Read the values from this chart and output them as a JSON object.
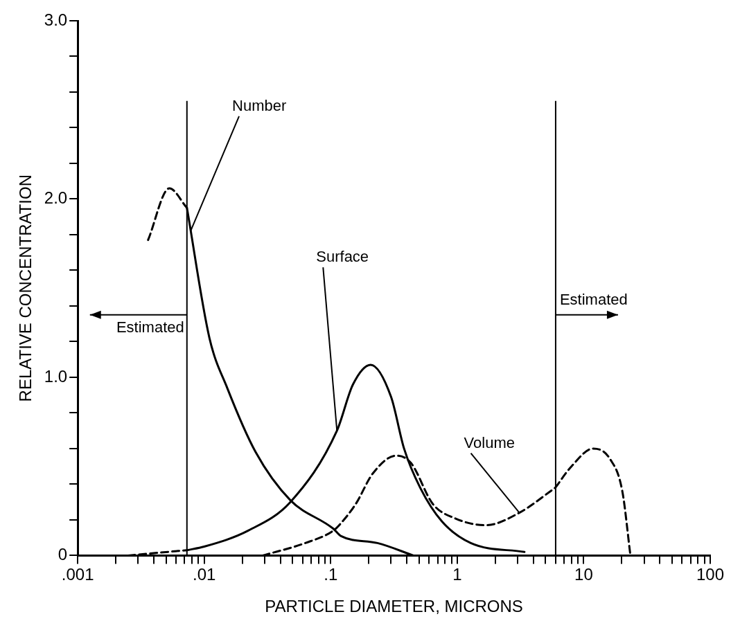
{
  "chart_data": {
    "type": "line",
    "xlabel": "PARTICLE DIAMETER, MICRONS",
    "ylabel": "RELATIVE CONCENTRATION",
    "log": "x",
    "grid": false,
    "legend": false,
    "marker": "none",
    "xlim": [
      0.001,
      100
    ],
    "xticks": [
      {
        "value": 0.001,
        "label": ".001"
      },
      {
        "value": 0.002,
        "label": null
      },
      {
        "value": 0.003,
        "label": null
      },
      {
        "value": 0.004,
        "label": null
      },
      {
        "value": 0.005,
        "label": null
      },
      {
        "value": 0.006,
        "label": null
      },
      {
        "value": 0.007,
        "label": null
      },
      {
        "value": 0.008,
        "label": null
      },
      {
        "value": 0.009,
        "label": null
      },
      {
        "value": 0.01,
        "label": ".01"
      },
      {
        "value": 0.02,
        "label": null
      },
      {
        "value": 0.03,
        "label": null
      },
      {
        "value": 0.04,
        "label": null
      },
      {
        "value": 0.05,
        "label": null
      },
      {
        "value": 0.06,
        "label": null
      },
      {
        "value": 0.07,
        "label": null
      },
      {
        "value": 0.08,
        "label": null
      },
      {
        "value": 0.09,
        "label": null
      },
      {
        "value": 0.1,
        "label": ".1"
      },
      {
        "value": 0.2,
        "label": null
      },
      {
        "value": 0.3,
        "label": null
      },
      {
        "value": 0.4,
        "label": null
      },
      {
        "value": 0.5,
        "label": null
      },
      {
        "value": 0.6,
        "label": null
      },
      {
        "value": 0.7,
        "label": null
      },
      {
        "value": 0.8,
        "label": null
      },
      {
        "value": 0.9,
        "label": null
      },
      {
        "value": 1,
        "label": "1"
      },
      {
        "value": 2,
        "label": null
      },
      {
        "value": 3,
        "label": null
      },
      {
        "value": 4,
        "label": null
      },
      {
        "value": 5,
        "label": null
      },
      {
        "value": 6,
        "label": null
      },
      {
        "value": 7,
        "label": null
      },
      {
        "value": 8,
        "label": null
      },
      {
        "value": 9,
        "label": null
      },
      {
        "value": 10,
        "label": "10"
      },
      {
        "value": 20,
        "label": null
      },
      {
        "value": 30,
        "label": null
      },
      {
        "value": 40,
        "label": null
      },
      {
        "value": 50,
        "label": null
      },
      {
        "value": 60,
        "label": null
      },
      {
        "value": 70,
        "label": null
      },
      {
        "value": 80,
        "label": null
      },
      {
        "value": 90,
        "label": null
      },
      {
        "value": 100,
        "label": "100"
      }
    ],
    "ylim": [
      0,
      3
    ],
    "yticks": [
      {
        "value": 0,
        "label": "0"
      },
      {
        "value": 0.2,
        "label": null
      },
      {
        "value": 0.4,
        "label": null
      },
      {
        "value": 0.6,
        "label": null
      },
      {
        "value": 0.8,
        "label": null
      },
      {
        "value": 1,
        "label": "1.0"
      },
      {
        "value": 1.2,
        "label": null
      },
      {
        "value": 1.4,
        "label": null
      },
      {
        "value": 1.6,
        "label": null
      },
      {
        "value": 1.8,
        "label": null
      },
      {
        "value": 2,
        "label": "2.0"
      },
      {
        "value": 2.2,
        "label": null
      },
      {
        "value": 2.4,
        "label": null
      },
      {
        "value": 2.6,
        "label": null
      },
      {
        "value": 2.8,
        "label": null
      },
      {
        "value": 3,
        "label": "3.0"
      }
    ],
    "series": [
      {
        "color": "#000000",
        "line_style": "solid",
        "x": [
          0.0073,
          0.011,
          0.0152,
          0.0255,
          0.048,
          0.105,
          0.12,
          0.234,
          0.45
        ],
        "values": [
          1.95,
          1.22,
          0.94,
          0.58,
          0.31,
          0.15,
          0.11,
          0.07,
          0
        ]
      },
      {
        "color": "#000000",
        "line_style": "dashed",
        "x": [
          0.0036,
          0.0053,
          0.0073
        ],
        "values": [
          1.77,
          2.06,
          1.95
        ]
      },
      {
        "color": "#000000",
        "line_style": "dashed",
        "x": [
          0.0025,
          0.0073
        ],
        "values": [
          0,
          0.03
        ]
      },
      {
        "color": "#000000",
        "line_style": "solid",
        "x": [
          0.0073,
          0.01,
          0.0223,
          0.048,
          0.112,
          0.15,
          0.207,
          0.3,
          0.38,
          0.51,
          0.76,
          1.28,
          3.4
        ],
        "values": [
          0.03,
          0.05,
          0.14,
          0.3,
          0.7,
          0.96,
          1.07,
          0.89,
          0.6,
          0.38,
          0.19,
          0.07,
          0.02
        ]
      },
      {
        "color": "#000000",
        "line_style": "dashed",
        "x": [
          0.029,
          0.063,
          0.105,
          0.12,
          0.158,
          0.215,
          0.33,
          0.43,
          0.64,
          0.95,
          1.68,
          3.1,
          5.96
        ],
        "values": [
          0,
          0.07,
          0.14,
          0.18,
          0.29,
          0.46,
          0.56,
          0.52,
          0.29,
          0.21,
          0.17,
          0.24,
          0.38
        ]
      },
      {
        "color": "#000000",
        "line_style": "dashed",
        "x": [
          5.96,
          8,
          11.9,
          16.2,
          20.2,
          23.4
        ],
        "values": [
          0.38,
          0.5,
          0.6,
          0.54,
          0.36,
          0
        ]
      }
    ],
    "ref_lines": [
      {
        "axis": "x",
        "value": 0.0073,
        "label": "Estimated",
        "color": "#000000"
      },
      {
        "axis": "x",
        "value": 6,
        "label": "Estimated",
        "color": "#000000"
      }
    ],
    "annotations": [
      {
        "text": "Number",
        "x": 0.0078,
        "y": 1.82
      },
      {
        "text": "Surface",
        "x": 0.112,
        "y": 0.7
      },
      {
        "text": "Volume",
        "x": 3.1,
        "y": 0.24
      }
    ]
  }
}
